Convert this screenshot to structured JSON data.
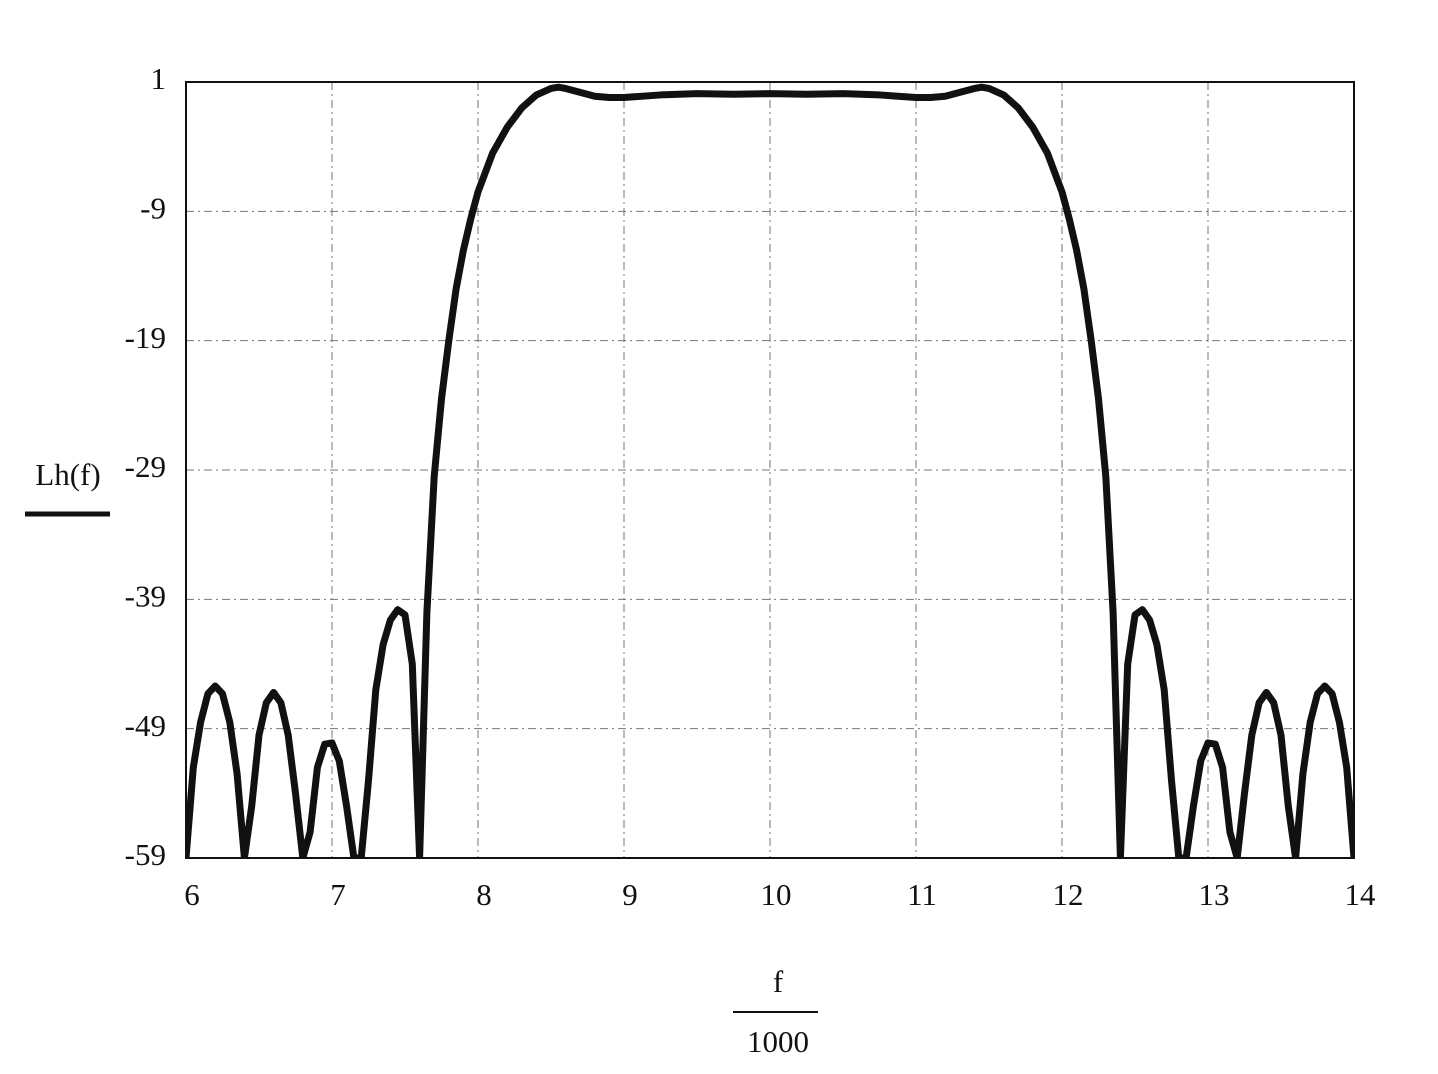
{
  "chart_data": {
    "type": "line",
    "xlabel_numerator": "f",
    "xlabel_denominator": "1000",
    "xlim": [
      6,
      14
    ],
    "xticks": [
      6,
      7,
      8,
      9,
      10,
      11,
      12,
      13,
      14
    ],
    "ylim": [
      -59,
      1
    ],
    "yticks": [
      1,
      -9,
      -19,
      -29,
      -39,
      -49,
      -59
    ],
    "grid": true,
    "x": [
      6.0,
      6.05,
      6.1,
      6.15,
      6.2,
      6.25,
      6.3,
      6.35,
      6.4,
      6.45,
      6.5,
      6.55,
      6.6,
      6.65,
      6.7,
      6.75,
      6.8,
      6.85,
      6.9,
      6.95,
      7.0,
      7.05,
      7.1,
      7.15,
      7.2,
      7.25,
      7.3,
      7.35,
      7.4,
      7.45,
      7.5,
      7.55,
      7.6,
      7.65,
      7.7,
      7.75,
      7.8,
      7.85,
      7.9,
      7.95,
      8.0,
      8.1,
      8.2,
      8.3,
      8.4,
      8.5,
      8.55,
      8.6,
      8.7,
      8.8,
      8.9,
      9.0,
      9.25,
      9.5,
      9.75,
      10.0,
      10.25,
      10.5,
      10.75,
      11.0,
      11.1,
      11.2,
      11.3,
      11.4,
      11.45,
      11.5,
      11.6,
      11.7,
      11.8,
      11.9,
      12.0,
      12.05,
      12.1,
      12.15,
      12.2,
      12.25,
      12.3,
      12.35,
      12.4,
      12.45,
      12.5,
      12.55,
      12.6,
      12.65,
      12.7,
      12.75,
      12.8,
      12.85,
      12.9,
      12.95,
      13.0,
      13.05,
      13.1,
      13.15,
      13.2,
      13.25,
      13.3,
      13.35,
      13.4,
      13.45,
      13.5,
      13.55,
      13.6,
      13.65,
      13.7,
      13.75,
      13.8,
      13.85,
      13.9,
      13.95,
      14.0
    ],
    "series": [
      {
        "name": "Lh(f)",
        "color": "#111111",
        "values": [
          -59,
          -52,
          -48.5,
          -46.3,
          -45.7,
          -46.3,
          -48.5,
          -52.5,
          -59,
          -55,
          -49.5,
          -47,
          -46.2,
          -47,
          -49.5,
          -54,
          -59,
          -57,
          -52,
          -50.2,
          -50.1,
          -51.5,
          -55,
          -59,
          -59,
          -53,
          -46,
          -42.5,
          -40.6,
          -39.8,
          -40.2,
          -44,
          -59,
          -40,
          -29.5,
          -23.5,
          -19,
          -15,
          -12,
          -9.6,
          -7.5,
          -4.5,
          -2.5,
          -1,
          0,
          0.5,
          0.6,
          0.5,
          0.2,
          -0.1,
          -0.2,
          -0.2,
          0,
          0.1,
          0.05,
          0.1,
          0.05,
          0.1,
          0,
          -0.2,
          -0.2,
          -0.1,
          0.2,
          0.5,
          0.6,
          0.5,
          0,
          -1,
          -2.5,
          -4.5,
          -7.5,
          -9.6,
          -12,
          -15,
          -19,
          -23.5,
          -29.5,
          -40,
          -59,
          -44,
          -40.2,
          -39.8,
          -40.6,
          -42.5,
          -46,
          -53,
          -59,
          -59,
          -55,
          -51.5,
          -50.1,
          -50.2,
          -52,
          -57,
          -59,
          -54,
          -49.5,
          -47,
          -46.2,
          -47,
          -49.5,
          -55,
          -59,
          -52.5,
          -48.5,
          -46.3,
          -45.7,
          -46.3,
          -48.5,
          -52,
          -59
        ]
      }
    ]
  }
}
